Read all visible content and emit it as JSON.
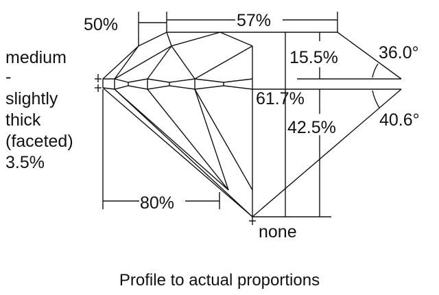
{
  "labels": {
    "star_length": "50%",
    "table": "57%",
    "crown_height": "15.5%",
    "crown_angle": "36.0°",
    "total_depth": "61.7%",
    "pavilion_depth": "42.5%",
    "pavilion_angle": "40.6°",
    "lower_half": "80%",
    "culet": "none",
    "girdle": [
      "medium",
      "-",
      "slightly",
      "thick",
      "(faceted)",
      "3.5%"
    ]
  },
  "caption": "Profile to actual proportions"
}
